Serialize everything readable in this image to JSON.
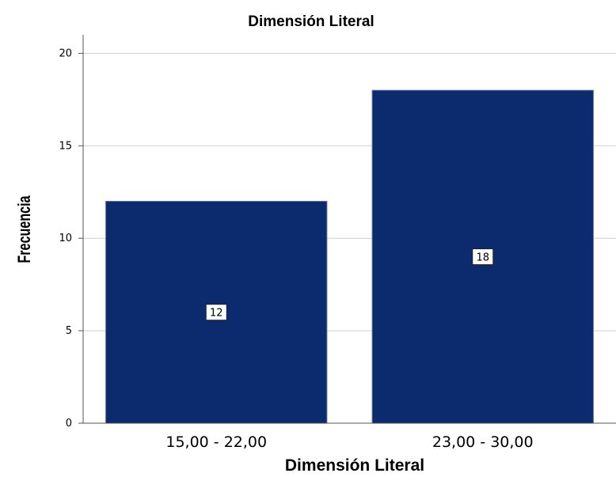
{
  "chart_data": {
    "type": "bar",
    "title": "Dimensión Literal",
    "xlabel": "Dimensión Literal",
    "ylabel": "Frecuencia",
    "categories": [
      "15,00 - 22,00",
      "23,00 - 30,00"
    ],
    "values": [
      12,
      18
    ],
    "data_labels": [
      "12",
      "18"
    ],
    "ylim": [
      0,
      21
    ],
    "yticks": [
      0,
      5,
      10,
      15,
      20
    ],
    "ytick_labels": [
      "0",
      "5",
      "10",
      "15",
      "20"
    ],
    "grid": "horizontal",
    "bar_color": "#0c2a6e",
    "background": "#ffffff"
  }
}
